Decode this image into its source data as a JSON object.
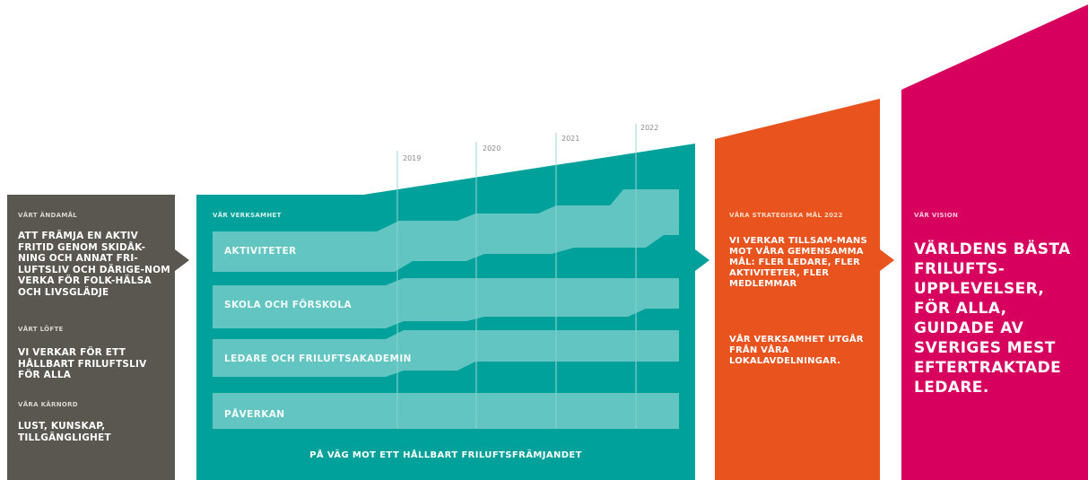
{
  "colors": {
    "purpose_bg": "#5a5650",
    "teal": "#00a19a",
    "teal_band": "#7fd0cc",
    "orange": "#e8531e",
    "magenta": "#d8005f"
  },
  "purpose": {
    "heading_1": "VÅRT ÄNDAMÅL",
    "text_1": "ATT FRÄMJA EN AKTIV FRITID GENOM SKIDÅK-NING OCH ANNAT FRI-LUFTSLIV OCH DÄRIGE-NOM VERKA FÖR FOLK-HÄLSA OCH LIVSGLÄDJE",
    "heading_2": "VÅRT LÖFTE",
    "text_2": "VI VERKAR FÖR ETT HÅLLBART FRILUFTSLIV FÖR ALLA",
    "heading_3": "VÅRA KÄRNORD",
    "text_3": "LUST, KUNSKAP, TILLGÄNGLIGHET"
  },
  "operations": {
    "title": "VÅR VERKSAMHET",
    "years": [
      "2019",
      "2020",
      "2021",
      "2022"
    ],
    "bands": [
      "AKTIVITETER",
      "SKOLA OCH FÖRSKOLA",
      "LEDARE OCH FRILUFTSAKADEMIN",
      "PÅVERKAN"
    ],
    "footer": "PÅ VÄG MOT ETT HÅLLBART FRILUFTSFRÄMJANDET"
  },
  "goals": {
    "title": "VÅRA STRATEGISKA MÅL 2022",
    "text_1": "VI VERKAR TILLSAM-MANS MOT VÅRA GEMENSAMMA MÅL: FLER LEDARE, FLER AKTIVITETER, FLER MEDLEMMAR",
    "text_2": "VÅR VERKSAMHET UTGÅR FRÅN VÅRA LOKALAVDELNINGAR."
  },
  "vision": {
    "title": "VÅR VISION",
    "text": "VÄRLDENS BÄSTA FRILUFTS-UPPLEVELSER, FÖR ALLA, GUIDADE AV SVERIGES MEST EFTERTRAKTADE LEDARE."
  }
}
